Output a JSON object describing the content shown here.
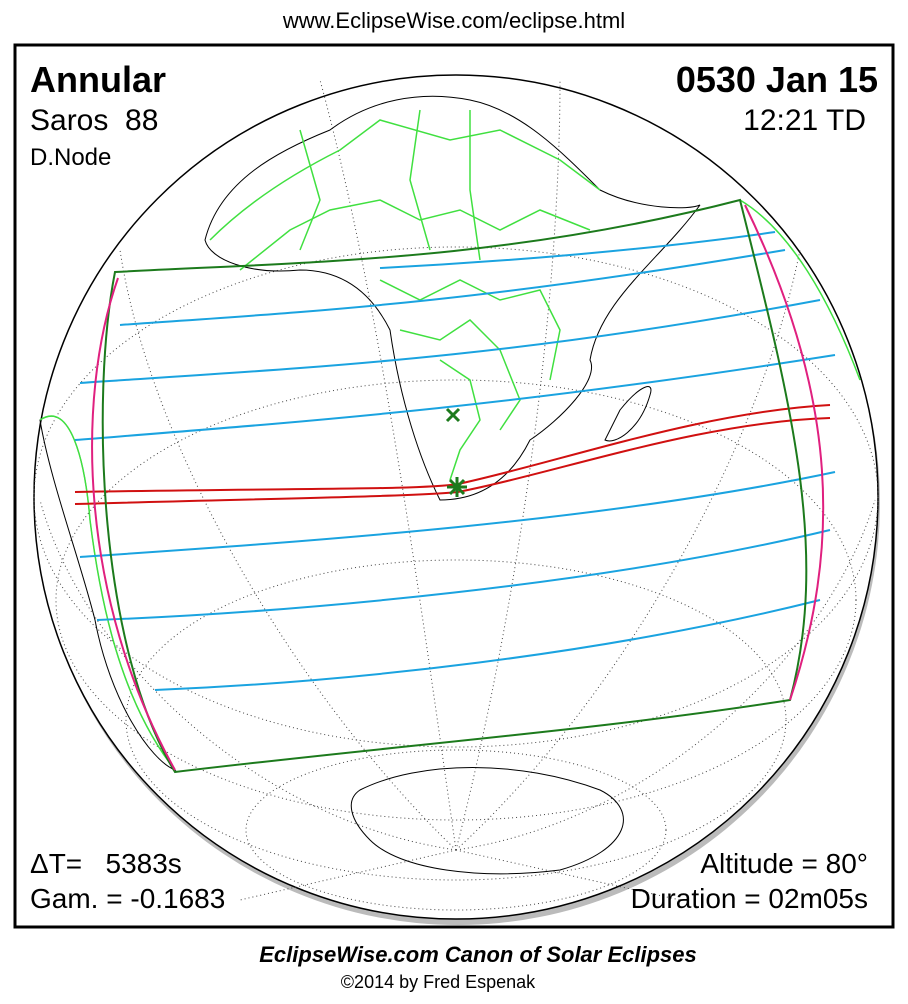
{
  "header": {
    "url": "www.EclipseWise.com/eclipse.html"
  },
  "panel": {
    "top_left": {
      "type": "Annular",
      "saros": "Saros  88",
      "node": "D.Node"
    },
    "top_right": {
      "date": "0530 Jan 15",
      "time": "12:21 TD"
    },
    "bottom_left": {
      "delta_t": "ΔT=   5383s",
      "gamma": "Gam. = -0.1683"
    },
    "bottom_right": {
      "altitude": "Altitude = 80°",
      "duration": "Duration = 02m05s"
    }
  },
  "footer": {
    "title": "EclipseWise.com Canon of Solar Eclipses",
    "credit": "©2014 by Fred Espenak"
  }
}
